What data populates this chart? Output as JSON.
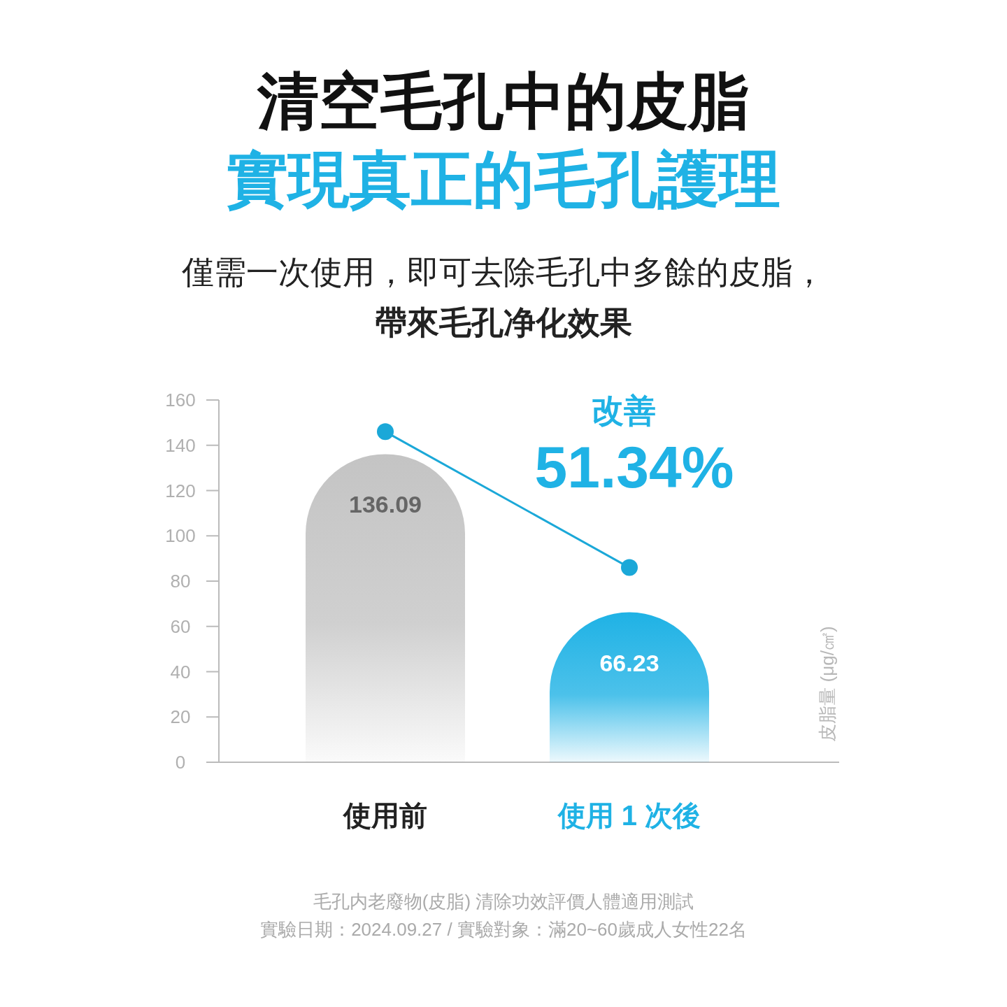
{
  "chart_data": {
    "type": "bar",
    "title": "清空毛孔中的皮脂",
    "subtitle": "實現真正的毛孔護理",
    "ylabel": "皮脂量 (μg/㎠)",
    "categories": [
      "使用前",
      "使用 1 次後"
    ],
    "series": [
      {
        "colors": [
          "#c4c4c4",
          "#1fb2e5"
        ],
        "values": [
          136.09,
          66.23
        ],
        "value_labels": [
          "136.09",
          "66.23"
        ]
      },
      {
        "type": "line",
        "color": "#1ba8d8",
        "values": [
          146,
          86
        ]
      }
    ],
    "marker": "circle",
    "ylim": [
      0,
      160
    ],
    "yticks": [
      0,
      20,
      40,
      60,
      80,
      100,
      120,
      140,
      160
    ],
    "annotations": [
      "僅需一次使用，即可去除毛孔中多餘的皮脂，",
      "帶來毛孔净化效果",
      "改善",
      "51.34%",
      "毛孔内老廢物(皮脂) 清除功效評價人體適用測試",
      "實驗日期：2024.09.27 / 實驗對象：滿20~60歲成人女性22名"
    ]
  }
}
